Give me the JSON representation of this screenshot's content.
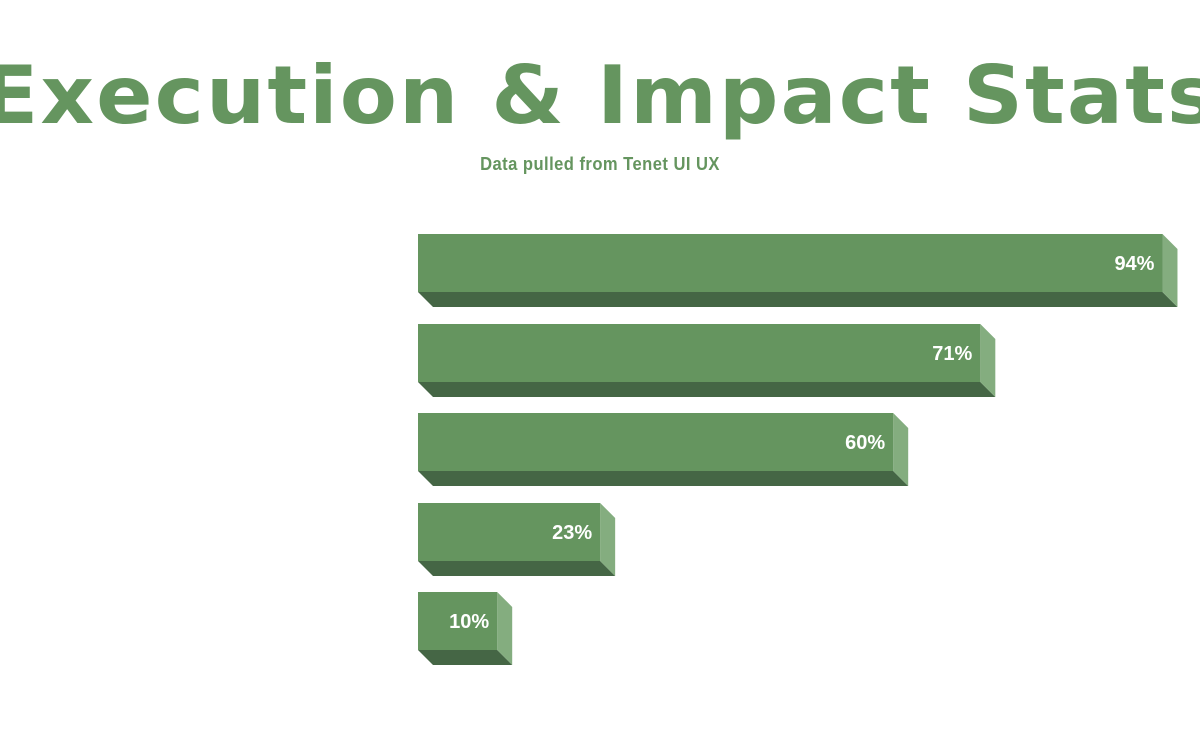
{
  "chart_data": {
    "type": "bar",
    "orientation": "horizontal",
    "title": "Execution & Impact Stats",
    "subtitle": "Data pulled from Tenet UI UX",
    "categories": [
      "",
      "",
      "",
      "",
      ""
    ],
    "values": [
      94,
      71,
      60,
      23,
      10
    ],
    "labels": [
      "94%",
      "71%",
      "60%",
      "23%",
      "10%"
    ],
    "xlim": [
      0,
      100
    ],
    "grid": false,
    "legend": false
  },
  "colors": {
    "bar_front": "#65955f",
    "bar_bottom": "#456645",
    "bar_side": "#84ad7f",
    "text": "#65955f"
  }
}
